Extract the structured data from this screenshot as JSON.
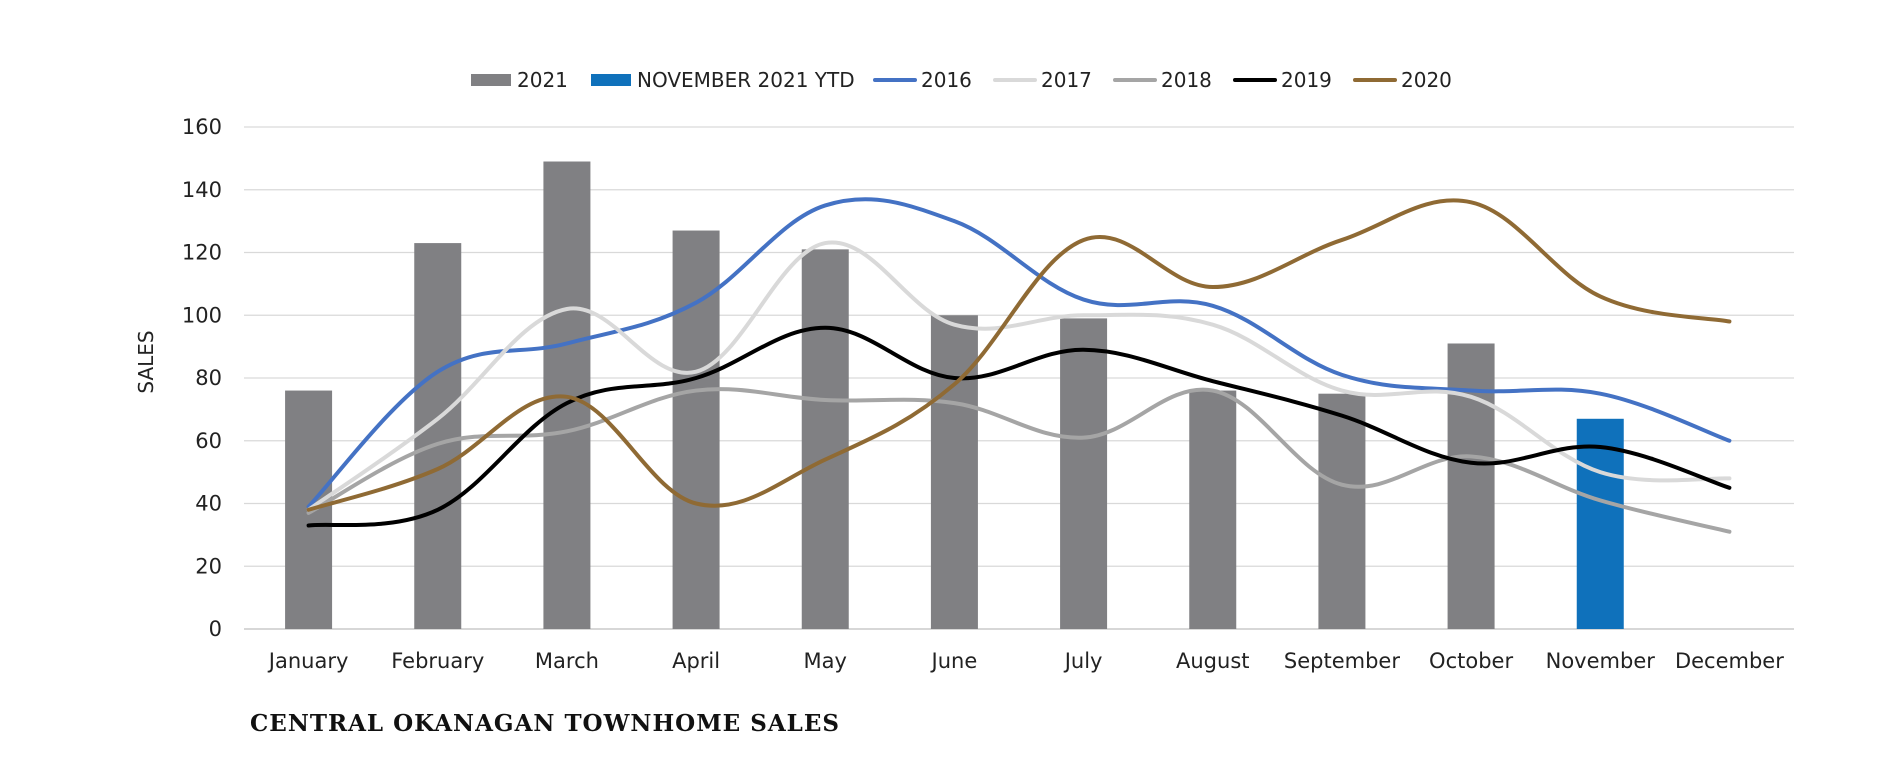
{
  "chart_data": {
    "type": "bar",
    "title": "CENTRAL OKANAGAN TOWNHOME SALES",
    "ylabel": "SALES",
    "xlabel": "",
    "ylim": [
      0,
      160
    ],
    "yticks": [
      0,
      20,
      40,
      60,
      80,
      100,
      120,
      140,
      160
    ],
    "grid": true,
    "legend_position": "top",
    "categories": [
      "January",
      "February",
      "March",
      "April",
      "May",
      "June",
      "July",
      "August",
      "September",
      "October",
      "November",
      "December"
    ],
    "bars": [
      {
        "name": "2021",
        "color": "#808083",
        "values": [
          76,
          123,
          149,
          127,
          121,
          100,
          99,
          76,
          75,
          91,
          null,
          null
        ]
      },
      {
        "name": "NOVEMBER 2021 YTD",
        "color": "#0f71bb",
        "values": [
          null,
          null,
          null,
          null,
          null,
          null,
          null,
          null,
          null,
          null,
          67,
          null
        ]
      }
    ],
    "series": [
      {
        "name": "2016",
        "type": "line",
        "color": "#4472c4",
        "values": [
          39,
          82,
          91,
          104,
          135,
          130,
          105,
          103,
          81,
          76,
          75,
          60
        ]
      },
      {
        "name": "2017",
        "type": "line",
        "color": "#d9d9d9",
        "values": [
          38,
          67,
          102,
          82,
          123,
          97,
          100,
          97,
          76,
          74,
          50,
          48
        ]
      },
      {
        "name": "2018",
        "type": "line",
        "color": "#a5a5a5",
        "values": [
          37,
          59,
          63,
          76,
          73,
          72,
          61,
          76,
          46,
          55,
          41,
          31
        ]
      },
      {
        "name": "2019",
        "type": "line",
        "color": "#000000",
        "values": [
          33,
          38,
          72,
          80,
          96,
          80,
          89,
          79,
          68,
          53,
          58,
          45
        ]
      },
      {
        "name": "2020",
        "type": "line",
        "color": "#8f6a34",
        "values": [
          38,
          51,
          74,
          40,
          54,
          78,
          124,
          109,
          124,
          136,
          106,
          98
        ]
      }
    ]
  }
}
